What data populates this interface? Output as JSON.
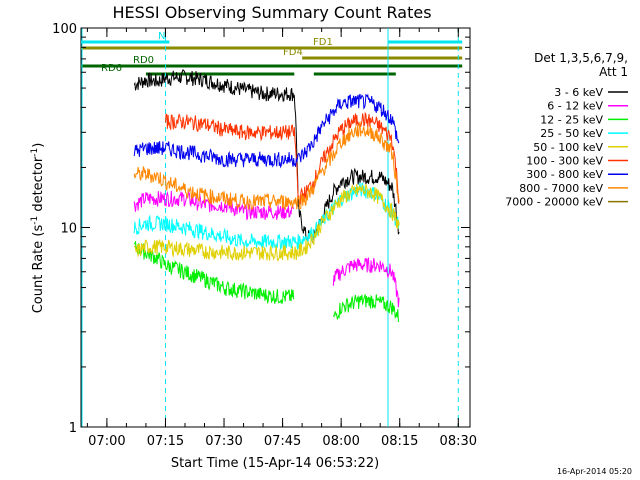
{
  "chart_data": {
    "type": "line",
    "title": "HESSI Observing Summary Count Rates",
    "xlabel": "Start Time (15-Apr-14 06:53:22)",
    "ylabel_main": "Count Rate (s",
    "ylabel_sup1": "-1",
    "ylabel_mid": " detector",
    "ylabel_sup2": "-1",
    "ylabel_end": ")",
    "y_scale": "log",
    "ylim": [
      1,
      100
    ],
    "xlim": [
      "06:53:22",
      "08:33"
    ],
    "x_ticks": [
      "07:00",
      "07:15",
      "07:30",
      "07:45",
      "08:00",
      "08:15",
      "08:30"
    ],
    "y_ticks": [
      "1",
      "10",
      "100"
    ],
    "grid": false,
    "legend_position": "right",
    "legend_title_line1": "Det 1,3,5,6,7,9,",
    "legend_title_line2": "Att 1",
    "timestamp": "16-Apr-2014 05:20",
    "series": [
      {
        "name": "3 - 6 keV",
        "color": "#000000",
        "x": [
          "07:05",
          "07:07",
          "07:10",
          "07:13",
          "07:15",
          "07:20",
          "07:25",
          "07:30",
          "07:35",
          "07:40",
          "07:45",
          "07:48",
          "07:49",
          "07:51",
          "07:53",
          "07:55",
          "07:58",
          "08:00",
          "08:03",
          "08:05",
          "08:08",
          "08:10",
          "08:13",
          "08:15"
        ],
        "y": [
          0,
          52,
          55,
          54,
          56,
          57,
          55,
          52,
          49,
          47,
          47,
          47,
          12,
          9,
          9,
          11,
          15,
          17,
          18,
          18,
          18,
          18,
          16,
          9
        ]
      },
      {
        "name": "6 - 12 keV",
        "color": "#ff00ff",
        "x": [
          "07:05",
          "07:07",
          "07:10",
          "07:13",
          "07:15",
          "07:20",
          "07:25",
          "07:30",
          "07:35",
          "07:40",
          "07:45",
          "07:48",
          "07:49",
          "07:51",
          "07:53",
          "07:55",
          "07:58",
          "08:00",
          "08:03",
          "08:05",
          "08:08",
          "08:10",
          "08:13",
          "08:15"
        ],
        "y": [
          0,
          13,
          14,
          14,
          14,
          14,
          13,
          13,
          12,
          12,
          12,
          12,
          0,
          0,
          0,
          0,
          5.5,
          6,
          6.5,
          6.5,
          6.5,
          6.5,
          6,
          4
        ]
      },
      {
        "name": "12 - 25 keV",
        "color": "#00ee00",
        "x": [
          "07:05",
          "07:07",
          "07:10",
          "07:13",
          "07:15",
          "07:20",
          "07:25",
          "07:30",
          "07:35",
          "07:40",
          "07:45",
          "07:48",
          "07:49",
          "07:51",
          "07:53",
          "07:55",
          "07:58",
          "08:00",
          "08:03",
          "08:05",
          "08:08",
          "08:10",
          "08:13",
          "08:15"
        ],
        "y": [
          0,
          8,
          7.5,
          7,
          6.5,
          6,
          5.5,
          5,
          4.8,
          4.6,
          4.5,
          4.5,
          0,
          0,
          0,
          0,
          3.5,
          4,
          4.2,
          4.3,
          4.3,
          4.2,
          4,
          3.5
        ]
      },
      {
        "name": "25 - 50 keV",
        "color": "#00ffff",
        "x": [
          "07:05",
          "07:07",
          "07:10",
          "07:13",
          "07:15",
          "07:20",
          "07:25",
          "07:30",
          "07:35",
          "07:40",
          "07:45",
          "07:48",
          "07:49",
          "07:51",
          "07:53",
          "07:55",
          "07:58",
          "08:00",
          "08:03",
          "08:05",
          "08:08",
          "08:10",
          "08:13",
          "08:15"
        ],
        "y": [
          0,
          10,
          10.5,
          10.5,
          10.5,
          10,
          9.5,
          9,
          8.5,
          8.5,
          8.5,
          8.5,
          8.5,
          9,
          9.5,
          10.5,
          12.5,
          14,
          15,
          15.5,
          15,
          14,
          12,
          10
        ]
      },
      {
        "name": "50 - 100 keV",
        "color": "#e0d000",
        "x": [
          "07:05",
          "07:07",
          "07:10",
          "07:13",
          "07:15",
          "07:20",
          "07:25",
          "07:30",
          "07:35",
          "07:40",
          "07:45",
          "07:48",
          "07:49",
          "07:51",
          "07:53",
          "07:55",
          "07:58",
          "08:00",
          "08:03",
          "08:05",
          "08:08",
          "08:10",
          "08:13",
          "08:15"
        ],
        "y": [
          0,
          7.5,
          8,
          8,
          8,
          7.8,
          7.6,
          7.5,
          7.5,
          7.5,
          7.5,
          7.5,
          7.5,
          8,
          9,
          10.5,
          12.5,
          14,
          15,
          15.5,
          15,
          14,
          12,
          10
        ]
      },
      {
        "name": "100 - 300 keV",
        "color": "#ff3300",
        "x": [
          "07:05",
          "07:07",
          "07:10",
          "07:13",
          "07:15",
          "07:20",
          "07:25",
          "07:30",
          "07:35",
          "07:40",
          "07:45",
          "07:48",
          "07:49",
          "07:51",
          "07:53",
          "07:55",
          "07:58",
          "08:00",
          "08:03",
          "08:05",
          "08:08",
          "08:10",
          "08:13",
          "08:15"
        ],
        "y": [
          0,
          0,
          0,
          0,
          34,
          34,
          33,
          31,
          30,
          30,
          30,
          30,
          14,
          15,
          17,
          21,
          27,
          31,
          34,
          35,
          34,
          32,
          28,
          12
        ]
      },
      {
        "name": "300 - 800 keV",
        "color": "#0000ee",
        "x": [
          "07:05",
          "07:07",
          "07:10",
          "07:13",
          "07:15",
          "07:20",
          "07:25",
          "07:30",
          "07:35",
          "07:40",
          "07:45",
          "07:48",
          "07:49",
          "07:51",
          "07:53",
          "07:55",
          "07:58",
          "08:00",
          "08:03",
          "08:05",
          "08:08",
          "08:10",
          "08:13",
          "08:15"
        ],
        "y": [
          0,
          24,
          25,
          25,
          25,
          24,
          23,
          22,
          22,
          22,
          22,
          22,
          22,
          24,
          27,
          32,
          38,
          42,
          43,
          43,
          42,
          40,
          35,
          25
        ]
      },
      {
        "name": "800 - 7000 keV",
        "color": "#ff8800",
        "x": [
          "07:05",
          "07:07",
          "07:10",
          "07:13",
          "07:15",
          "07:20",
          "07:25",
          "07:30",
          "07:35",
          "07:40",
          "07:45",
          "07:48",
          "07:49",
          "07:51",
          "07:53",
          "07:55",
          "07:58",
          "08:00",
          "08:03",
          "08:05",
          "08:08",
          "08:10",
          "08:13",
          "08:15"
        ],
        "y": [
          0,
          18.5,
          18.5,
          18,
          17,
          15.5,
          14.5,
          14,
          13.5,
          13.5,
          13.5,
          13.5,
          13.5,
          14,
          16,
          19,
          23,
          27,
          30,
          31,
          30,
          28,
          24,
          12
        ]
      },
      {
        "name": "7000 - 20000 keV",
        "color": "#8b7500",
        "x": [],
        "y": []
      }
    ],
    "flags": [
      {
        "name": "N",
        "color": "#00e5ee",
        "segments": [
          [
            "06:53",
            "07:16"
          ],
          [
            "08:12",
            "08:31"
          ]
        ]
      },
      {
        "name": "FD1",
        "color": "#8b8b00",
        "segments": [
          [
            "06:53",
            "08:31"
          ]
        ]
      },
      {
        "name": "FD4",
        "color": "#8b8b00",
        "segments": [
          [
            "07:50",
            "08:31"
          ]
        ]
      },
      {
        "name": "RD0",
        "color": "#006400",
        "segments": [
          [
            "06:53",
            "08:31"
          ]
        ]
      },
      {
        "name": "RD6",
        "color": "#006400",
        "segments": [
          [
            "07:10",
            "07:48"
          ],
          [
            "07:53",
            "08:14"
          ]
        ]
      }
    ]
  }
}
